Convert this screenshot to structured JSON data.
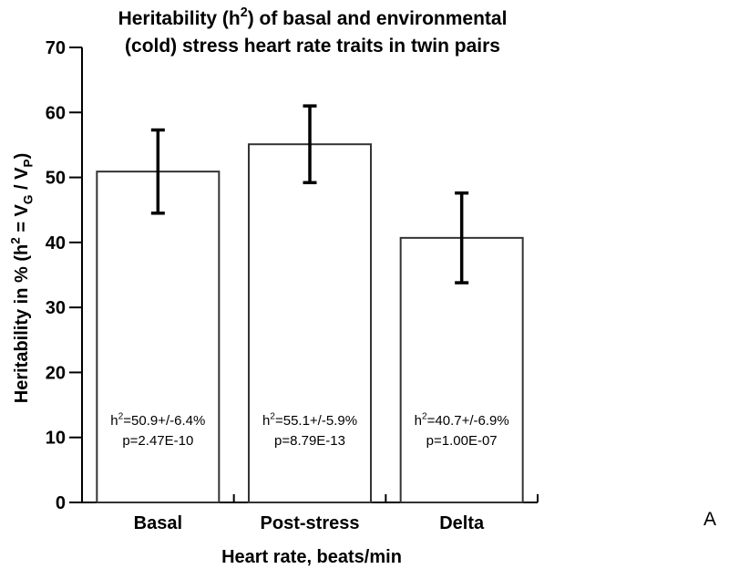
{
  "figure": {
    "panel_label": "A",
    "colors": {
      "foreground": "#000000",
      "bar_fill": "#ffffff",
      "bar_outline": "#333333",
      "error_bar": "#000000",
      "background": "#ffffff"
    }
  },
  "chart_data": {
    "type": "bar",
    "title_lines": [
      [
        {
          "t": "Heritability (h"
        },
        {
          "t": "2",
          "s": "sup"
        },
        {
          "t": ") of basal and environmental"
        }
      ],
      [
        {
          "t": "(cold) stress heart rate traits in twin pairs"
        }
      ]
    ],
    "xlabel": "Heart rate, beats/min",
    "ylabel_segments": [
      {
        "t": "Heritability in % (h"
      },
      {
        "t": "2",
        "s": "sup"
      },
      {
        "t": " = V"
      },
      {
        "t": "G",
        "s": "sub"
      },
      {
        "t": " / V"
      },
      {
        "t": "P",
        "s": "sub"
      },
      {
        "t": ")"
      }
    ],
    "categories": [
      "Basal",
      "Post-stress",
      "Delta"
    ],
    "values": [
      50.9,
      55.1,
      40.7
    ],
    "errors": [
      6.4,
      5.9,
      6.9
    ],
    "ylim": [
      0,
      70
    ],
    "yticks": [
      0,
      10,
      20,
      30,
      40,
      50,
      60,
      70
    ],
    "grid": false,
    "legend": null,
    "bar_annotations": [
      {
        "line1": [
          {
            "t": "h"
          },
          {
            "t": "2",
            "s": "sup"
          },
          {
            "t": "=50.9+/-6.4%"
          }
        ],
        "line2": "p=2.47E-10"
      },
      {
        "line1": [
          {
            "t": "h"
          },
          {
            "t": "2",
            "s": "sup"
          },
          {
            "t": "=55.1+/-5.9%"
          }
        ],
        "line2": "p=8.79E-13"
      },
      {
        "line1": [
          {
            "t": "h"
          },
          {
            "t": "2",
            "s": "sup"
          },
          {
            "t": "=40.7+/-6.9%"
          }
        ],
        "line2": "p=1.00E-07"
      }
    ]
  }
}
